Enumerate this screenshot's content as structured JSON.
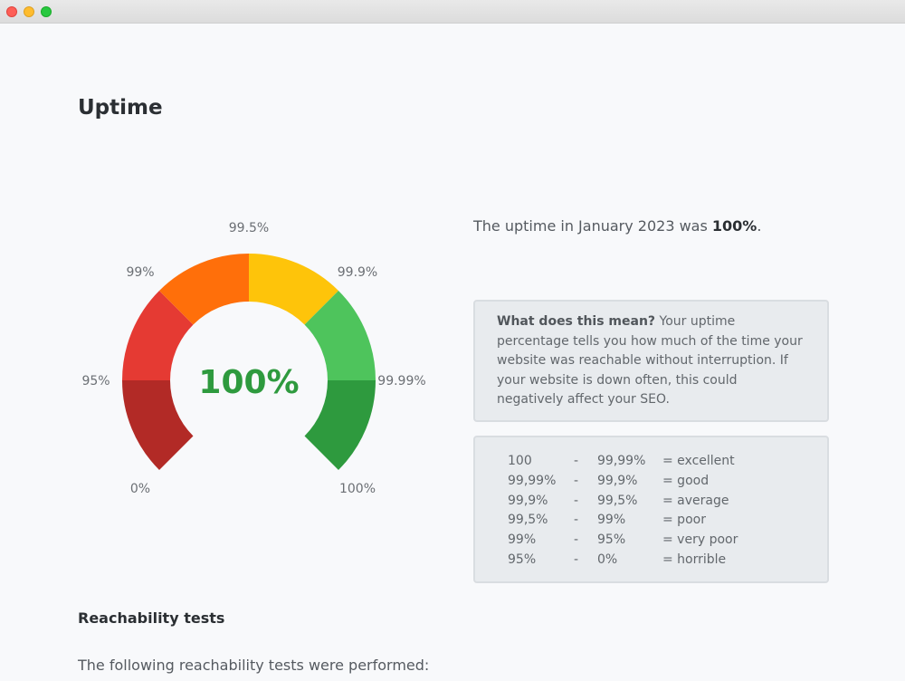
{
  "window": {
    "controls": [
      "close",
      "minimize",
      "maximize"
    ]
  },
  "page": {
    "title": "Uptime"
  },
  "gauge": {
    "value": 100,
    "value_label": "100%",
    "segments": [
      {
        "from": "0%",
        "to": "95%",
        "color": "#b22a26"
      },
      {
        "from": "95%",
        "to": "99%",
        "color": "#e53a33"
      },
      {
        "from": "99%",
        "to": "99.5%",
        "color": "#ff6f0a"
      },
      {
        "from": "99.5%",
        "to": "99.9%",
        "color": "#fec40a"
      },
      {
        "from": "99.9%",
        "to": "99.99%",
        "color": "#4ec45c"
      },
      {
        "from": "99.99%",
        "to": "100%",
        "color": "#2e9a3e"
      }
    ],
    "tick_labels": [
      "0%",
      "95%",
      "99%",
      "99.5%",
      "99.9%",
      "99.99%",
      "100%"
    ]
  },
  "summary": {
    "prefix": "The uptime in January 2023 was ",
    "value": "100%",
    "suffix": "."
  },
  "info": {
    "question": "What does this mean?",
    "text": " Your uptime percentage tells you how much of the time your website was reachable without interruption. If your website is down often, this could negatively affect your SEO."
  },
  "ranges": [
    {
      "from": "100",
      "dash": "-",
      "to": "99,99%",
      "grade": "= excellent"
    },
    {
      "from": "99,99%",
      "dash": "-",
      "to": "99,9%",
      "grade": "= good"
    },
    {
      "from": "99,9%",
      "dash": "-",
      "to": "99,5%",
      "grade": "= average"
    },
    {
      "from": "99,5%",
      "dash": "-",
      "to": "99%",
      "grade": "= poor"
    },
    {
      "from": "99%",
      "dash": "-",
      "to": "95%",
      "grade": "= very poor"
    },
    {
      "from": "95%",
      "dash": "-",
      "to": "0%",
      "grade": "= horrible"
    }
  ],
  "reachability": {
    "title": "Reachability tests",
    "intro": "The following reachability tests were performed:"
  }
}
